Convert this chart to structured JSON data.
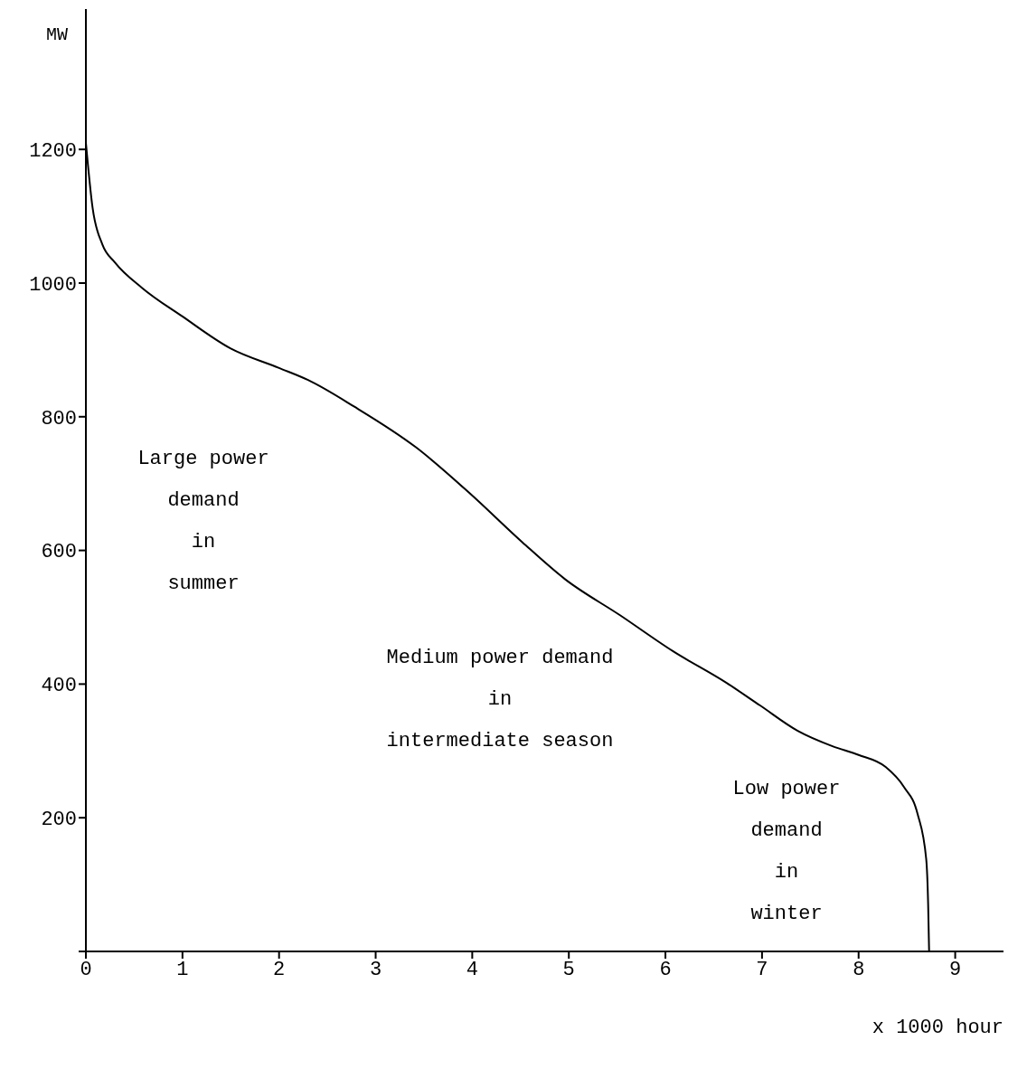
{
  "chart_data": {
    "type": "line",
    "xlabel": "x 1000 hour",
    "ylabel": "MW",
    "x": [
      0,
      0.07,
      0.17,
      0.3,
      0.58,
      1.0,
      1.5,
      2.0,
      2.3,
      2.78,
      3.42,
      3.97,
      4.52,
      4.96,
      5.53,
      6.08,
      6.63,
      6.98,
      7.37,
      7.73,
      8.0,
      8.28,
      8.47,
      8.61,
      8.7,
      8.72,
      8.73
    ],
    "series": [
      {
        "color": "#000000",
        "values": [
          1210,
          1112,
          1058,
          1031,
          993,
          950,
          902,
          873,
          855,
          815,
          754,
          686,
          612,
          557,
          503,
          449,
          402,
          368,
          330,
          307,
          294,
          276,
          246,
          206,
          138,
          70,
          0
        ]
      }
    ],
    "xlim": [
      0,
      9.5
    ],
    "ylim": [
      0,
      1410
    ],
    "xticks": [
      0,
      1,
      2,
      3,
      4,
      5,
      6,
      7,
      8,
      9
    ],
    "yticks": [
      {
        "value": 0,
        "label": null
      },
      200,
      400,
      600,
      800,
      1000,
      1200
    ],
    "annotations": [
      "Large power\ndemand\nin\nsummer",
      "Medium power demand\nin\nintermediate season",
      "Low power\ndemand\nin\nwinter"
    ],
    "marker": "none",
    "line_style": "solid"
  }
}
